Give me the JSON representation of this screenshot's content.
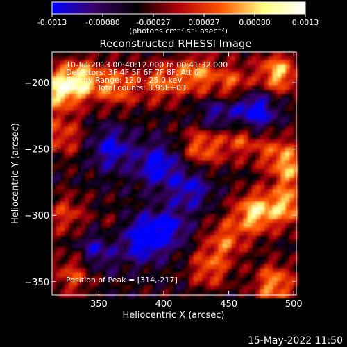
{
  "chart_data": {
    "type": "heatmap",
    "title": "Reconstructed RHESSI Image",
    "xlabel": "Heliocentric X (arcsec)",
    "ylabel": "Heliocentric Y (arcsec)",
    "xlim": [
      314,
      502
    ],
    "ylim": [
      -360,
      -177
    ],
    "xticks": [
      350,
      400,
      450,
      500
    ],
    "yticks": [
      -200,
      -250,
      -300,
      -350
    ],
    "colorbar": {
      "range": [
        -0.0013,
        0.0013
      ],
      "ticks": [
        "-0.0013",
        "-0.00080",
        "-0.00027",
        "0.00027",
        "0.00080",
        "0.0013"
      ],
      "unit_label": "(photons cm⁻² s⁻¹ asec⁻²)",
      "colors": [
        "#0000ff",
        "#3a0068",
        "#000000",
        "#b3000a",
        "#ff5500",
        "#ffff80",
        "#ffffff"
      ]
    },
    "annotations": [
      "10-Jul-2013 00:40:12.000 to 00:41:32.000",
      "Detectors: 3F 4F 5F 6F 7F 8F, Att 0",
      "Energy Range: 12.0 - 25.0 keV",
      "Clean    Total counts: 3.95E+03"
    ],
    "peak_label": "Position of Peak = [314,-217]",
    "peak_position": [
      314,
      -217
    ],
    "hotspots": [
      {
        "x": 319,
        "y": -205,
        "v": 1.0
      },
      {
        "x": 338,
        "y": -198,
        "v": 0.85
      },
      {
        "x": 365,
        "y": -203,
        "v": 0.7
      },
      {
        "x": 398,
        "y": -200,
        "v": 0.65
      },
      {
        "x": 425,
        "y": -194,
        "v": 0.75
      },
      {
        "x": 453,
        "y": -201,
        "v": 0.6
      },
      {
        "x": 488,
        "y": -193,
        "v": 0.9
      },
      {
        "x": 322,
        "y": -240,
        "v": 0.55
      },
      {
        "x": 430,
        "y": -248,
        "v": 0.7
      },
      {
        "x": 458,
        "y": -242,
        "v": 0.6
      },
      {
        "x": 485,
        "y": -252,
        "v": 0.5
      },
      {
        "x": 325,
        "y": -300,
        "v": 0.5
      },
      {
        "x": 470,
        "y": -298,
        "v": 0.95
      },
      {
        "x": 495,
        "y": -293,
        "v": 0.8
      },
      {
        "x": 500,
        "y": -265,
        "v": 0.7
      },
      {
        "x": 448,
        "y": -318,
        "v": 0.6
      },
      {
        "x": 360,
        "y": -315,
        "v": 0.35
      },
      {
        "x": 330,
        "y": -345,
        "v": 0.55
      },
      {
        "x": 435,
        "y": -340,
        "v": 0.6
      },
      {
        "x": 485,
        "y": -352,
        "v": 0.8
      }
    ],
    "coldspots": [
      {
        "x": 360,
        "y": -250,
        "v": -0.6
      },
      {
        "x": 395,
        "y": -262,
        "v": -0.7
      },
      {
        "x": 382,
        "y": -318,
        "v": -0.85
      },
      {
        "x": 350,
        "y": -325,
        "v": -0.6
      },
      {
        "x": 420,
        "y": -280,
        "v": -0.55
      },
      {
        "x": 442,
        "y": -225,
        "v": -0.5
      },
      {
        "x": 470,
        "y": -222,
        "v": -0.85
      },
      {
        "x": 403,
        "y": -310,
        "v": -0.6
      }
    ]
  },
  "footer": {
    "timestamp": "15-May-2022 11:50"
  }
}
